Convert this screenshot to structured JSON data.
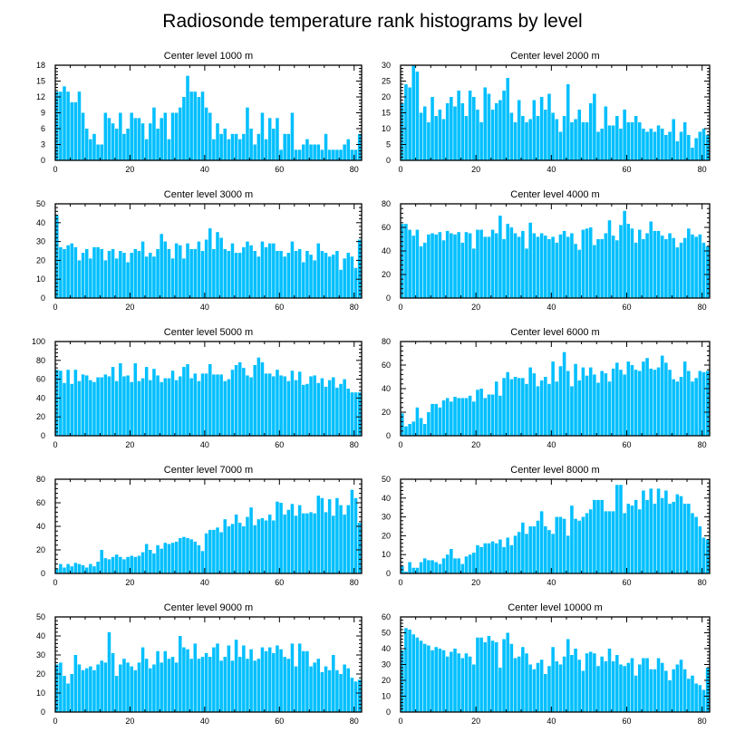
{
  "title": "Radiosonde temperature rank histograms by level",
  "colors": {
    "bar": "#00bfff",
    "axis": "#000000",
    "background": "#ffffff"
  },
  "chart_data": [
    {
      "type": "bar",
      "title": "Center level 1000 m",
      "xlim": [
        0,
        82
      ],
      "ylim": [
        0,
        18
      ],
      "xticks": [
        0,
        20,
        40,
        60,
        80
      ],
      "yticks": [
        0,
        3,
        6,
        9,
        12,
        15,
        18
      ],
      "values": [
        13,
        13,
        14,
        13,
        11,
        11,
        13,
        9,
        6,
        4,
        5,
        3,
        3,
        9,
        8,
        7,
        6,
        9,
        5,
        6,
        9,
        8,
        8,
        7,
        4,
        7,
        10,
        6,
        8,
        9,
        4,
        9,
        9,
        10,
        12,
        16,
        13,
        13,
        12,
        13,
        10,
        9,
        4,
        7,
        5,
        6,
        4,
        5,
        5,
        4,
        5,
        10,
        6,
        3,
        5,
        9,
        4,
        8,
        6,
        8,
        2,
        5,
        5,
        9,
        2,
        2,
        3,
        4,
        3,
        3,
        3,
        2,
        5,
        2,
        2,
        2,
        2,
        3,
        4,
        2,
        2,
        5
      ]
    },
    {
      "type": "bar",
      "title": "Center level 2000 m",
      "xlim": [
        0,
        82
      ],
      "ylim": [
        0,
        30
      ],
      "xticks": [
        0,
        20,
        40,
        60,
        80
      ],
      "yticks": [
        0,
        5,
        10,
        15,
        20,
        25,
        30
      ],
      "values": [
        18,
        24,
        23,
        30,
        28,
        15,
        17,
        12,
        20,
        14,
        16,
        13,
        18,
        20,
        17,
        22,
        18,
        14,
        22,
        20,
        16,
        12,
        23,
        21,
        16,
        18,
        19,
        22,
        26,
        15,
        12,
        19,
        14,
        12,
        13,
        19,
        14,
        20,
        16,
        21,
        15,
        13,
        9,
        14,
        24,
        12,
        13,
        16,
        12,
        12,
        18,
        21,
        9,
        10,
        17,
        11,
        11,
        14,
        10,
        16,
        12,
        12,
        14,
        12,
        10,
        9,
        10,
        9,
        11,
        10,
        8,
        9,
        13,
        6,
        9,
        12,
        8,
        4,
        7,
        9,
        10,
        8
      ]
    },
    {
      "type": "bar",
      "title": "Center level 3000 m",
      "xlim": [
        0,
        82
      ],
      "ylim": [
        0,
        50
      ],
      "xticks": [
        0,
        20,
        40,
        60,
        80
      ],
      "yticks": [
        0,
        10,
        20,
        30,
        40,
        50
      ],
      "values": [
        44,
        27,
        26,
        28,
        29,
        27,
        20,
        24,
        26,
        21,
        27,
        27,
        26,
        20,
        25,
        26,
        21,
        25,
        24,
        19,
        24,
        26,
        25,
        30,
        22,
        24,
        22,
        26,
        34,
        30,
        26,
        21,
        29,
        28,
        21,
        29,
        26,
        26,
        30,
        25,
        31,
        37,
        26,
        35,
        32,
        26,
        25,
        29,
        24,
        24,
        27,
        30,
        28,
        25,
        22,
        30,
        27,
        29,
        29,
        25,
        25,
        22,
        24,
        30,
        25,
        26,
        19,
        25,
        23,
        20,
        29,
        25,
        24,
        22,
        23,
        25,
        15,
        21,
        24,
        22,
        16,
        31
      ]
    },
    {
      "type": "bar",
      "title": "Center level 4000 m",
      "xlim": [
        0,
        82
      ],
      "ylim": [
        0,
        80
      ],
      "xticks": [
        0,
        20,
        40,
        60,
        80
      ],
      "yticks": [
        0,
        20,
        40,
        60,
        80
      ],
      "values": [
        63,
        63,
        58,
        53,
        58,
        44,
        47,
        54,
        55,
        54,
        56,
        49,
        57,
        55,
        54,
        56,
        47,
        56,
        55,
        42,
        58,
        58,
        52,
        52,
        58,
        55,
        70,
        50,
        63,
        60,
        55,
        52,
        57,
        42,
        64,
        55,
        52,
        55,
        53,
        50,
        52,
        47,
        54,
        57,
        52,
        55,
        46,
        41,
        58,
        59,
        60,
        45,
        50,
        50,
        55,
        66,
        53,
        49,
        62,
        74,
        63,
        59,
        47,
        58,
        50,
        55,
        65,
        57,
        57,
        53,
        50,
        55,
        51,
        43,
        47,
        51,
        59,
        54,
        52,
        54,
        47,
        44
      ]
    },
    {
      "type": "bar",
      "title": "Center level 5000 m",
      "xlim": [
        0,
        82
      ],
      "ylim": [
        0,
        100
      ],
      "xticks": [
        0,
        20,
        40,
        60,
        80
      ],
      "yticks": [
        0,
        20,
        40,
        60,
        80,
        100
      ],
      "values": [
        70,
        69,
        56,
        70,
        55,
        70,
        58,
        65,
        64,
        59,
        57,
        62,
        62,
        65,
        63,
        73,
        58,
        77,
        63,
        64,
        57,
        77,
        58,
        61,
        73,
        59,
        71,
        64,
        57,
        61,
        61,
        69,
        59,
        63,
        73,
        76,
        61,
        66,
        58,
        66,
        66,
        76,
        65,
        65,
        65,
        58,
        60,
        70,
        75,
        78,
        72,
        64,
        62,
        75,
        83,
        78,
        66,
        66,
        63,
        70,
        64,
        63,
        58,
        69,
        59,
        68,
        54,
        55,
        63,
        64,
        56,
        61,
        52,
        59,
        62,
        51,
        55,
        60,
        50,
        46,
        46,
        46
      ]
    },
    {
      "type": "bar",
      "title": "Center level 6000 m",
      "xlim": [
        0,
        82
      ],
      "ylim": [
        0,
        80
      ],
      "xticks": [
        0,
        20,
        40,
        60,
        80
      ],
      "yticks": [
        0,
        20,
        40,
        60,
        80
      ],
      "values": [
        19,
        8,
        10,
        12,
        24,
        15,
        10,
        20,
        27,
        27,
        24,
        30,
        32,
        29,
        33,
        32,
        32,
        32,
        34,
        29,
        39,
        40,
        32,
        35,
        35,
        46,
        34,
        49,
        54,
        48,
        50,
        49,
        49,
        44,
        58,
        53,
        42,
        47,
        50,
        44,
        63,
        46,
        59,
        71,
        55,
        42,
        61,
        47,
        58,
        51,
        58,
        52,
        45,
        55,
        53,
        46,
        57,
        62,
        56,
        52,
        63,
        60,
        56,
        55,
        63,
        66,
        57,
        56,
        58,
        68,
        62,
        56,
        48,
        46,
        50,
        63,
        55,
        46,
        49,
        55,
        54,
        55
      ]
    },
    {
      "type": "bar",
      "title": "Center level 7000 m",
      "xlim": [
        0,
        82
      ],
      "ylim": [
        0,
        80
      ],
      "xticks": [
        0,
        20,
        40,
        60,
        80
      ],
      "yticks": [
        0,
        20,
        40,
        60,
        80
      ],
      "values": [
        4,
        8,
        5,
        8,
        6,
        9,
        8,
        7,
        5,
        8,
        6,
        10,
        20,
        13,
        12,
        14,
        16,
        14,
        12,
        14,
        15,
        14,
        15,
        18,
        25,
        20,
        17,
        24,
        21,
        26,
        25,
        26,
        27,
        30,
        31,
        30,
        29,
        27,
        24,
        19,
        34,
        37,
        37,
        39,
        35,
        46,
        40,
        42,
        50,
        43,
        40,
        48,
        56,
        41,
        46,
        47,
        45,
        50,
        45,
        61,
        60,
        50,
        54,
        59,
        49,
        58,
        51,
        51,
        52,
        51,
        66,
        64,
        52,
        63,
        49,
        64,
        58,
        50,
        58,
        71,
        64,
        43
      ]
    },
    {
      "type": "bar",
      "title": "Center level 8000 m",
      "xlim": [
        0,
        82
      ],
      "ylim": [
        0,
        50
      ],
      "xticks": [
        0,
        20,
        40,
        60,
        80
      ],
      "yticks": [
        0,
        10,
        20,
        30,
        40,
        50
      ],
      "values": [
        4,
        1,
        6,
        3,
        3,
        6,
        8,
        7,
        7,
        6,
        5,
        8,
        10,
        13,
        8,
        8,
        5,
        9,
        10,
        11,
        15,
        14,
        16,
        16,
        17,
        16,
        18,
        14,
        19,
        15,
        20,
        22,
        27,
        21,
        25,
        25,
        28,
        33,
        25,
        23,
        21,
        30,
        30,
        29,
        20,
        36,
        29,
        28,
        30,
        32,
        34,
        39,
        39,
        39,
        33,
        33,
        33,
        47,
        47,
        32,
        37,
        36,
        39,
        34,
        44,
        39,
        45,
        37,
        45,
        40,
        44,
        37,
        38,
        42,
        41,
        37,
        37,
        32,
        30,
        25,
        19,
        18
      ]
    },
    {
      "type": "bar",
      "title": "Center level 9000 m",
      "xlim": [
        0,
        82
      ],
      "ylim": [
        0,
        50
      ],
      "xticks": [
        0,
        20,
        40,
        60,
        80
      ],
      "yticks": [
        0,
        10,
        20,
        30,
        40,
        50
      ],
      "values": [
        25,
        26,
        19,
        15,
        20,
        30,
        25,
        22,
        23,
        24,
        22,
        25,
        27,
        26,
        42,
        31,
        19,
        25,
        28,
        26,
        24,
        22,
        26,
        34,
        28,
        23,
        25,
        32,
        26,
        32,
        28,
        29,
        26,
        40,
        34,
        33,
        28,
        36,
        28,
        29,
        31,
        29,
        34,
        36,
        27,
        29,
        35,
        27,
        38,
        29,
        35,
        28,
        33,
        27,
        28,
        34,
        32,
        34,
        31,
        35,
        33,
        29,
        28,
        36,
        24,
        36,
        32,
        32,
        24,
        26,
        28,
        21,
        24,
        22,
        30,
        22,
        20,
        25,
        23,
        18,
        16,
        17
      ]
    },
    {
      "type": "bar",
      "title": "Center level 10000 m",
      "xlim": [
        0,
        82
      ],
      "ylim": [
        0,
        60
      ],
      "xticks": [
        0,
        20,
        40,
        60,
        80
      ],
      "yticks": [
        0,
        10,
        20,
        30,
        40,
        50,
        60
      ],
      "values": [
        39,
        53,
        52,
        49,
        47,
        45,
        43,
        42,
        39,
        41,
        40,
        39,
        35,
        38,
        40,
        37,
        34,
        37,
        35,
        30,
        47,
        47,
        44,
        48,
        45,
        44,
        28,
        46,
        50,
        43,
        34,
        35,
        41,
        37,
        30,
        27,
        31,
        33,
        24,
        29,
        41,
        32,
        30,
        35,
        46,
        36,
        40,
        33,
        26,
        37,
        38,
        37,
        29,
        35,
        32,
        40,
        32,
        36,
        30,
        29,
        31,
        34,
        23,
        30,
        34,
        34,
        27,
        27,
        34,
        31,
        26,
        20,
        27,
        30,
        33,
        27,
        21,
        23,
        18,
        17,
        14,
        28
      ]
    }
  ]
}
